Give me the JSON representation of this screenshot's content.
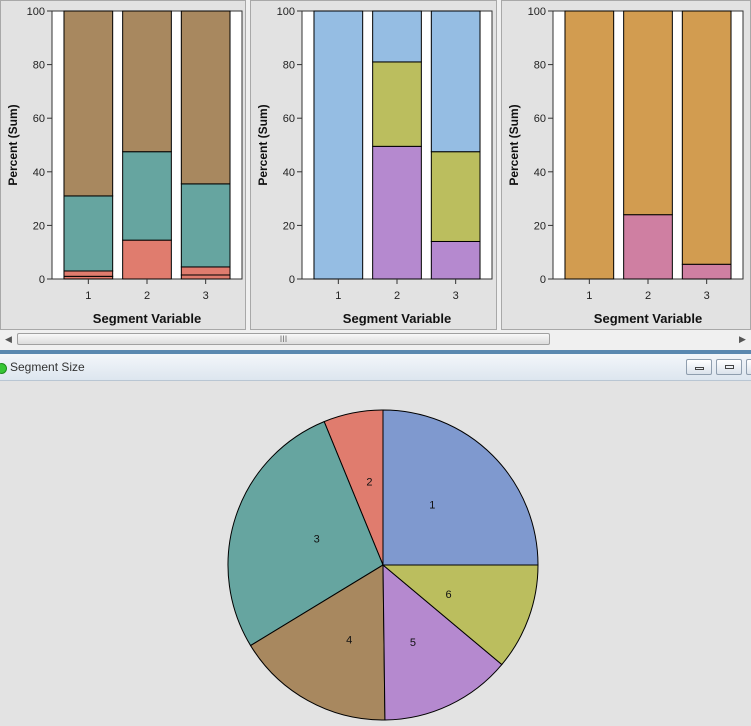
{
  "chart_data": [
    {
      "type": "bar",
      "stacked": true,
      "categories": [
        "1",
        "2",
        "3"
      ],
      "xlabel": "Segment Variable",
      "ylabel": "Percent (Sum)",
      "ylim": [
        0,
        100
      ],
      "yticks": [
        "0",
        "20",
        "40",
        "60",
        "80",
        "100"
      ],
      "series": [
        {
          "values": [
            1,
            0,
            1.5
          ],
          "color": "#e07c6e"
        },
        {
          "values": [
            2,
            14.5,
            3
          ],
          "color": "#e07c6e"
        },
        {
          "values": [
            28,
            33,
            31
          ],
          "color": "#66a5a0"
        },
        {
          "values": [
            69,
            52.5,
            64.5
          ],
          "color": "#a8885f"
        }
      ]
    },
    {
      "type": "bar",
      "stacked": true,
      "categories": [
        "1",
        "2",
        "3"
      ],
      "xlabel": "Segment Variable",
      "ylabel": "Percent (Sum)",
      "ylim": [
        0,
        100
      ],
      "yticks": [
        "0",
        "20",
        "40",
        "60",
        "80",
        "100"
      ],
      "series": [
        {
          "values": [
            0,
            49.5,
            14
          ],
          "color": "#b589cf"
        },
        {
          "values": [
            0,
            31.5,
            33.5
          ],
          "color": "#bbbe5e"
        },
        {
          "values": [
            100,
            19,
            52.5
          ],
          "color": "#95bde3"
        }
      ]
    },
    {
      "type": "bar",
      "stacked": true,
      "categories": [
        "1",
        "2",
        "3"
      ],
      "xlabel": "Segment Variable",
      "ylabel": "Percent (Sum)",
      "ylim": [
        0,
        100
      ],
      "yticks": [
        "0",
        "20",
        "40",
        "60",
        "80",
        "100"
      ],
      "series": [
        {
          "values": [
            0,
            24,
            5.5
          ],
          "color": "#cf7fa2"
        },
        {
          "values": [
            100,
            76,
            94.5
          ],
          "color": "#d29c50"
        }
      ]
    },
    {
      "type": "pie",
      "title": "Segment Size",
      "slices": [
        {
          "label": "1",
          "value": 25.0,
          "color": "#7f99cf"
        },
        {
          "label": "2",
          "value": 6.2,
          "color": "#e07c6e"
        },
        {
          "label": "3",
          "value": 27.5,
          "color": "#66a5a0"
        },
        {
          "label": "4",
          "value": 16.5,
          "color": "#a8885f"
        },
        {
          "label": "5",
          "value": 13.7,
          "color": "#b589cf"
        },
        {
          "label": "6",
          "value": 11.1,
          "color": "#bbbe5e"
        }
      ]
    }
  ],
  "scrollbar": {
    "grip": "III",
    "left_arrow": "◀",
    "right_arrow": "▶"
  },
  "colors": {
    "divider": "#5a88b0",
    "status": "#36c636"
  }
}
